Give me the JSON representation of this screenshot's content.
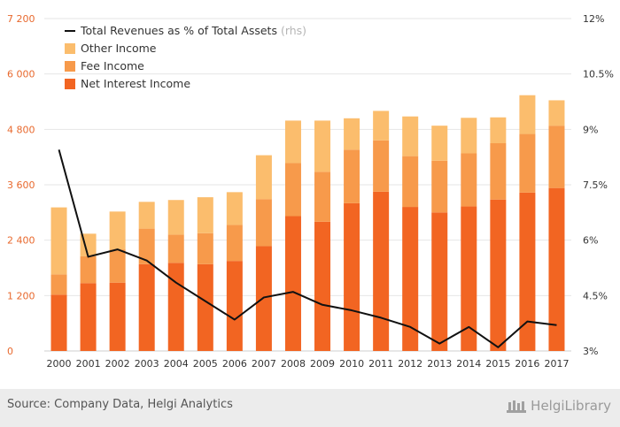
{
  "chart_data": {
    "type": "bar",
    "stacked": true,
    "categories": [
      "2000",
      "2001",
      "2002",
      "2003",
      "2004",
      "2005",
      "2006",
      "2007",
      "2008",
      "2009",
      "2010",
      "2011",
      "2012",
      "2013",
      "2014",
      "2015",
      "2016",
      "2017"
    ],
    "series": [
      {
        "name": "Net Interest Income",
        "color": "#f26522",
        "values": [
          1220,
          1470,
          1480,
          1880,
          1910,
          1880,
          1950,
          2270,
          2920,
          2800,
          3200,
          3450,
          3120,
          3000,
          3130,
          3280,
          3430,
          3530
        ]
      },
      {
        "name": "Fee Income",
        "color": "#f79a4b",
        "values": [
          440,
          580,
          720,
          770,
          610,
          670,
          780,
          1020,
          1150,
          1080,
          1160,
          1110,
          1100,
          1120,
          1150,
          1220,
          1270,
          1350
        ]
      },
      {
        "name": "Other Income",
        "color": "#fbbd6d",
        "values": [
          1450,
          490,
          820,
          580,
          750,
          780,
          710,
          950,
          920,
          1110,
          680,
          640,
          860,
          760,
          770,
          560,
          840,
          550
        ]
      }
    ],
    "line": {
      "name": "Total Revenues as % of Total Assets",
      "note": "(rhs)",
      "color": "#111111",
      "values": [
        8.45,
        5.55,
        5.75,
        5.45,
        4.85,
        4.35,
        3.85,
        4.45,
        4.6,
        4.25,
        4.1,
        3.9,
        3.65,
        3.2,
        3.65,
        3.1,
        3.8,
        3.7
      ]
    },
    "y_left": {
      "min": 0,
      "max": 7200,
      "ticks": [
        "0",
        "1 200",
        "2 400",
        "3 600",
        "4 800",
        "6 000",
        "7 200"
      ]
    },
    "y_right": {
      "min": 3,
      "max": 12,
      "ticks": [
        "3%",
        "4.5%",
        "6%",
        "7.5%",
        "9%",
        "10.5%",
        "12%"
      ]
    },
    "grid": true,
    "legend_position": "top-left"
  },
  "footer": {
    "source": "Source: Company Data, Helgi Analytics",
    "brand": "HelgiLibrary"
  }
}
